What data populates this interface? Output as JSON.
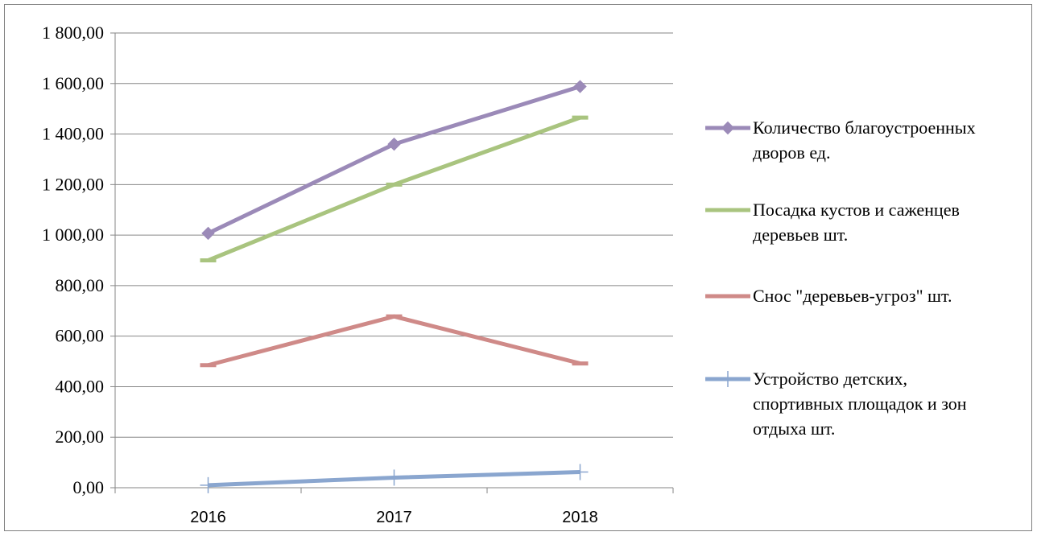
{
  "chart_data": {
    "type": "line",
    "title": "",
    "xlabel": "",
    "ylabel": "",
    "categories": [
      "2016",
      "2017",
      "2018"
    ],
    "ylim": [
      0,
      1800
    ],
    "ytick_labels": [
      "0,00",
      "200,00",
      "400,00",
      "600,00",
      "800,00",
      "1 000,00",
      "1 200,00",
      "1 400,00",
      "1 600,00",
      "1 800,00"
    ],
    "grid": true,
    "legend_position": "right",
    "series": [
      {
        "name": "Количество благоустроенных дворов ед.",
        "legend_lines": [
          "Количество благоустроенных",
          "дворов ед."
        ],
        "values": [
          1007,
          1360,
          1588
        ],
        "color": "#9b8ab8",
        "marker": "diamond"
      },
      {
        "name": "Посадка кустов и саженцев деревьев шт.",
        "legend_lines": [
          "Посадка кустов и саженцев",
          "деревьев шт."
        ],
        "values": [
          900,
          1200,
          1465
        ],
        "color": "#a9c47f",
        "marker": "dash"
      },
      {
        "name": "Снос \"деревьев-угроз\" шт.",
        "legend_lines": [
          "Снос \"деревьев-угроз\" шт."
        ],
        "values": [
          485,
          678,
          492
        ],
        "color": "#cf8a88",
        "marker": "dash"
      },
      {
        "name": "Устройство детских, спортивных площадок и зон отдыха шт.",
        "legend_lines": [
          "Устройство детских,",
          "спортивных площадок и зон",
          "отдыха шт."
        ],
        "values": [
          10,
          40,
          62
        ],
        "color": "#8aa6cf",
        "marker": "plus"
      }
    ]
  }
}
